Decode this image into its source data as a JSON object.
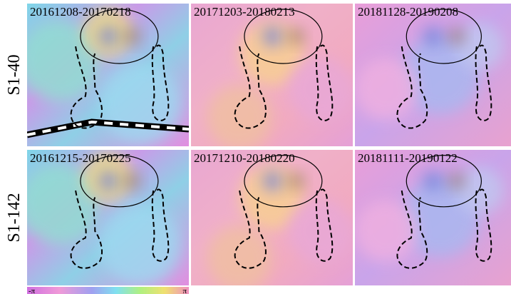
{
  "rows": [
    {
      "label": "S1-40",
      "panels": [
        "20161208-20170218",
        "20171203-20180213",
        "20181128-20190208"
      ]
    },
    {
      "label": "S1-142",
      "panels": [
        "20161215-20170225",
        "20171210-20180220",
        "20181111-20190122"
      ]
    }
  ],
  "colorbar": {
    "min_label": "-π",
    "max_label": "π"
  }
}
